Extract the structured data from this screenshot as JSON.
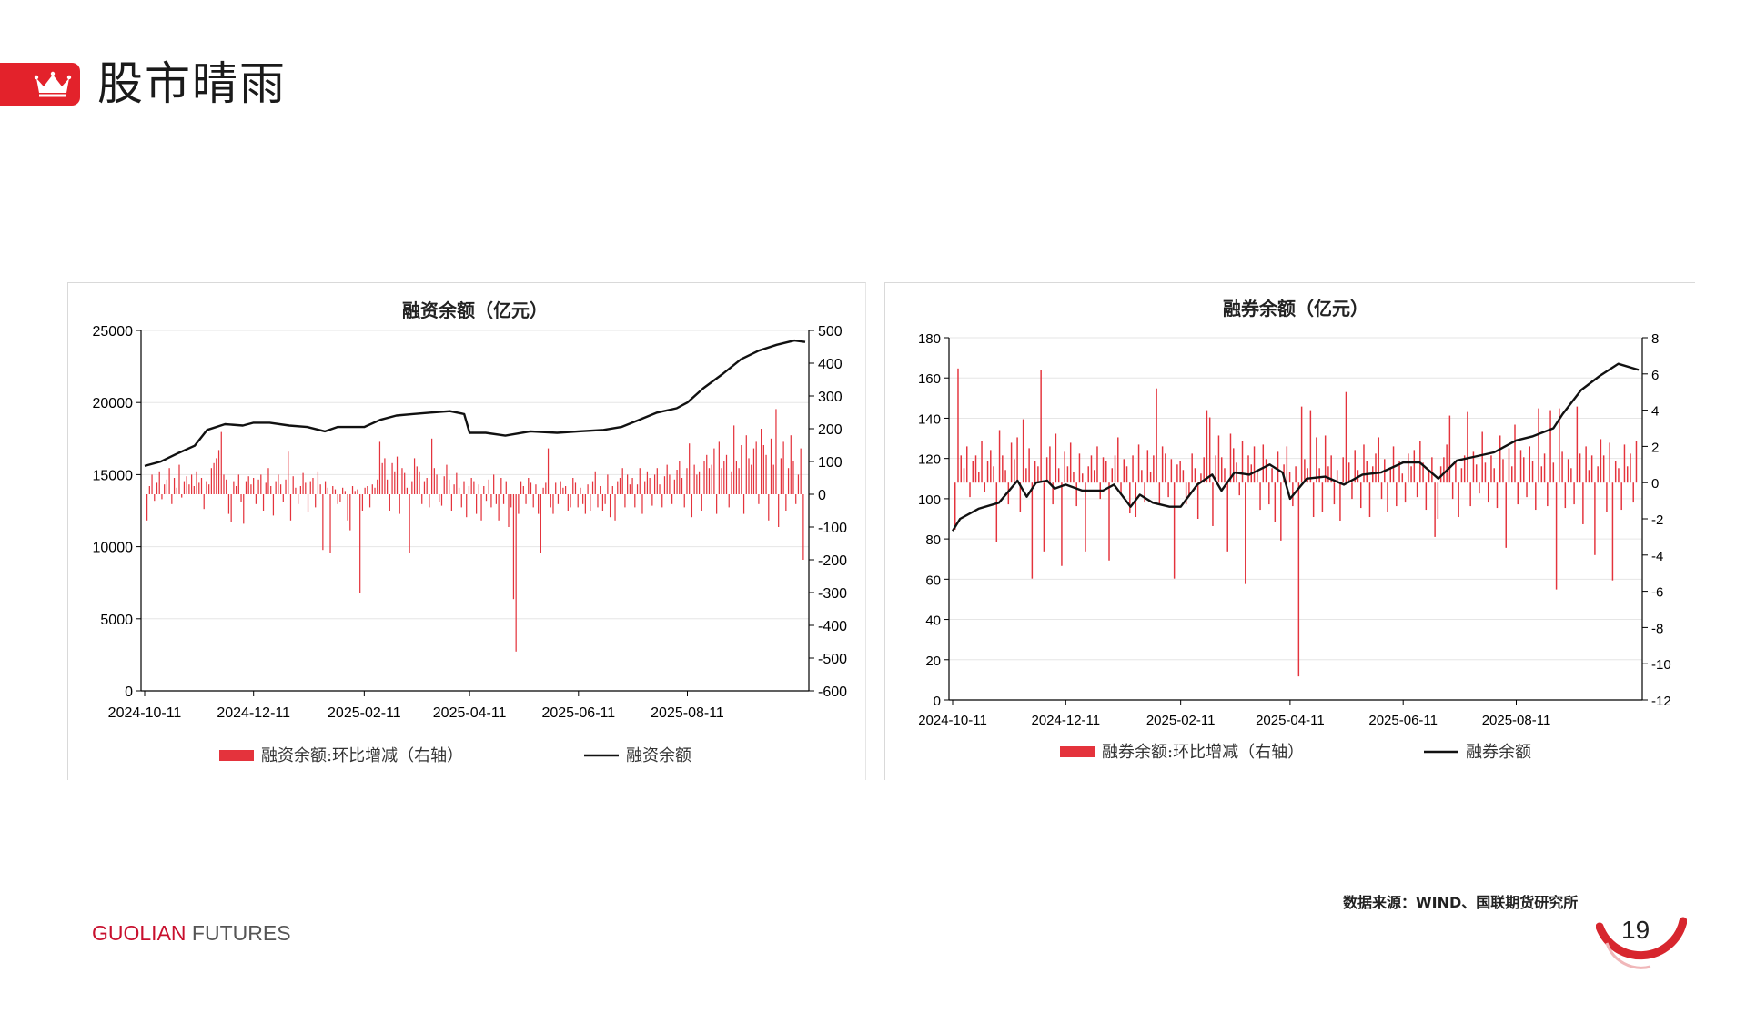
{
  "page": {
    "title": "股市晴雨",
    "source": "数据来源：WIND、国联期货研究所",
    "brand_main": "GUOLIAN",
    "brand_sub": " FUTURES",
    "page_number": "19"
  },
  "colors": {
    "accent": "#e3222b",
    "bar": "#e4333c",
    "line": "#111111",
    "grid": "#e6e6e6"
  },
  "icons": {
    "header": "crown-icon"
  },
  "chart_data": [
    {
      "type": "bar",
      "title": "融资余额（亿元）",
      "x_ticks": [
        "2024-10-11",
        "2024-12-11",
        "2025-02-11",
        "2025-04-11",
        "2025-06-11",
        "2025-08-11"
      ],
      "y_left": {
        "lim": [
          0,
          25000
        ],
        "ticks": [
          0,
          5000,
          10000,
          15000,
          20000,
          25000
        ]
      },
      "y_right": {
        "lim": [
          -600,
          500
        ],
        "ticks": [
          -600,
          -500,
          -400,
          -300,
          -200,
          -100,
          0,
          100,
          200,
          300,
          400,
          500
        ]
      },
      "grid": true,
      "legend_position": "bottom",
      "series": [
        {
          "name": "融资余额:环比增减（右轴）",
          "kind": "bar",
          "axis": "right",
          "values": [
            -80,
            25,
            60,
            -20,
            35,
            70,
            -15,
            30,
            45,
            80,
            -30,
            50,
            20,
            90,
            -10,
            40,
            55,
            30,
            60,
            25,
            70,
            35,
            50,
            -45,
            40,
            30,
            80,
            95,
            110,
            135,
            190,
            60,
            45,
            -60,
            -85,
            40,
            25,
            60,
            -25,
            -90,
            40,
            55,
            30,
            50,
            -30,
            45,
            60,
            -50,
            35,
            80,
            25,
            -65,
            40,
            60,
            30,
            -25,
            45,
            130,
            -80,
            55,
            20,
            -30,
            25,
            65,
            35,
            -55,
            40,
            50,
            -40,
            70,
            30,
            -170,
            40,
            20,
            -180,
            25,
            15,
            -30,
            -25,
            20,
            10,
            -80,
            -110,
            25,
            10,
            15,
            -300,
            -50,
            20,
            25,
            -40,
            30,
            20,
            45,
            160,
            95,
            110,
            45,
            -50,
            95,
            70,
            115,
            -60,
            80,
            65,
            20,
            -180,
            40,
            110,
            85,
            70,
            -30,
            40,
            50,
            -40,
            170,
            80,
            60,
            -25,
            -35,
            55,
            90,
            45,
            -50,
            30,
            65,
            20,
            -40,
            40,
            -70,
            25,
            50,
            40,
            -60,
            30,
            -80,
            25,
            -20,
            45,
            -40,
            60,
            -30,
            -80,
            50,
            -30,
            40,
            -100,
            -40,
            -320,
            -480,
            -60,
            40,
            25,
            -30,
            50,
            35,
            -40,
            30,
            -60,
            -180,
            20,
            35,
            140,
            -40,
            -60,
            35,
            -30,
            40,
            20,
            25,
            -50,
            -40,
            50,
            35,
            -40,
            20,
            -30,
            -60,
            30,
            -50,
            40,
            70,
            -40,
            25,
            -50,
            -30,
            60,
            -70,
            25,
            -80,
            40,
            50,
            80,
            -40,
            60,
            30,
            50,
            -40,
            30,
            80,
            -60,
            40,
            70,
            50,
            -35,
            60,
            80,
            30,
            -40,
            55,
            90,
            60,
            -30,
            45,
            75,
            100,
            50,
            -40,
            80,
            155,
            -70,
            90,
            60,
            70,
            -50,
            100,
            120,
            80,
            90,
            140,
            -60,
            160,
            80,
            100,
            120,
            -40,
            70,
            210,
            100,
            80,
            150,
            -60,
            180,
            110,
            90,
            140,
            160,
            -30,
            200,
            150,
            120,
            -80,
            170,
            90,
            260,
            -100,
            110,
            160,
            -50,
            80,
            180,
            100,
            -30,
            60,
            140,
            -200
          ],
          "note_values": "daily change, read off right axis"
        },
        {
          "name": "融资余额",
          "kind": "line",
          "axis": "left",
          "x": [
            "2024-10-11",
            "2024-10-20",
            "2024-10-30",
            "2024-11-08",
            "2024-11-15",
            "2024-11-25",
            "2024-12-05",
            "2024-12-11",
            "2024-12-20",
            "2024-12-31",
            "2025-01-10",
            "2025-01-20",
            "2025-01-27",
            "2025-02-11",
            "2025-02-20",
            "2025-03-01",
            "2025-03-10",
            "2025-03-20",
            "2025-03-31",
            "2025-04-08",
            "2025-04-11",
            "2025-04-20",
            "2025-05-01",
            "2025-05-15",
            "2025-05-30",
            "2025-06-11",
            "2025-06-25",
            "2025-07-05",
            "2025-07-15",
            "2025-07-25",
            "2025-08-05",
            "2025-08-11",
            "2025-08-20",
            "2025-08-31",
            "2025-09-10",
            "2025-09-20",
            "2025-09-30",
            "2025-10-10",
            "2025-10-16"
          ],
          "values": [
            15600,
            15900,
            16500,
            17000,
            18100,
            18500,
            18400,
            18600,
            18600,
            18400,
            18300,
            18000,
            18300,
            18300,
            18800,
            19100,
            19200,
            19300,
            19400,
            19200,
            17900,
            17900,
            17700,
            18000,
            17900,
            18000,
            18100,
            18300,
            18800,
            19300,
            19600,
            20000,
            21000,
            22000,
            23000,
            23600,
            24000,
            24300,
            24200
          ]
        }
      ]
    },
    {
      "type": "bar",
      "title": "融券余额（亿元）",
      "x_ticks": [
        "2024-10-11",
        "2024-12-11",
        "2025-02-11",
        "2025-04-11",
        "2025-06-11",
        "2025-08-11"
      ],
      "y_left": {
        "lim": [
          0,
          180
        ],
        "ticks": [
          0,
          20,
          40,
          60,
          80,
          100,
          120,
          140,
          160,
          180
        ]
      },
      "y_right": {
        "lim": [
          -12,
          8
        ],
        "ticks": [
          -12,
          -10,
          -8,
          -6,
          -4,
          -2,
          0,
          2,
          4,
          6,
          8
        ]
      },
      "grid": true,
      "legend_position": "bottom",
      "series": [
        {
          "name": "融券余额:环比增减（右轴）",
          "kind": "bar",
          "axis": "right",
          "values": [
            -2.6,
            6.3,
            1.5,
            0.8,
            2,
            -0.8,
            1.2,
            1.5,
            0.6,
            2.3,
            -0.5,
            1.2,
            1.8,
            0.9,
            -3.3,
            2.9,
            1.5,
            0.7,
            -1.2,
            2.2,
            1.3,
            2.5,
            -1.6,
            3.5,
            0.8,
            1.9,
            -5.3,
            1.2,
            0.9,
            6.2,
            -3.8,
            1.4,
            2,
            -1.2,
            2.7,
            0.8,
            -4.6,
            1.7,
            0.9,
            2.2,
            0.6,
            -1.3,
            1.6,
            0.5,
            -3.8,
            0.9,
            1.5,
            0.7,
            2,
            -0.9,
            1.4,
            1.2,
            -4.3,
            0.8,
            1.5,
            2.5,
            -0.6,
            1.3,
            0.9,
            -1.7,
            1.5,
            -1.9,
            2.1,
            0.7,
            -1.1,
            1.8,
            0.6,
            1.5,
            5.2,
            -1.2,
            2,
            1.6,
            -0.8,
            1.3,
            -5.3,
            1,
            1.2,
            0.7,
            -1.2,
            -0.8,
            1.6,
            0.8,
            -2,
            0.5,
            1.4,
            4,
            3.6,
            -2.4,
            1.5,
            2.6,
            1.4,
            0.8,
            -3.8,
            2.7,
            1.9,
            1.1,
            -0.7,
            2.3,
            -5.6,
            1.5,
            1,
            2,
            0.7,
            -1.5,
            2.1,
            1.3,
            -1.2,
            0.8,
            -2.2,
            1.7,
            -3.2,
            1,
            2,
            0.6,
            -1.3,
            0.9,
            -10.7,
            4.2,
            1.3,
            0.8,
            4,
            -1.9,
            2.5,
            0.8,
            -1.6,
            2.6,
            0.9,
            1.5,
            -1.2,
            0.7,
            -2.1,
            1.4,
            5,
            1.1,
            -0.9,
            1.8,
            0.7,
            -1.4,
            2.1,
            1.2,
            -1.9,
            0.9,
            1.6,
            2.5,
            -0.9,
            1.3,
            -1.6,
            0.8,
            2,
            -1.3,
            1.2,
            0.5,
            -1.1,
            1.6,
            0.9,
            1.8,
            -0.8,
            2.3,
            1.1,
            -1.5,
            0.7,
            1.4,
            -3,
            -2,
            0.9,
            1.4,
            2.1,
            3.7,
            -0.9,
            1.2,
            -1.9,
            0.8,
            1.5,
            3.9,
            -1.3,
            1.7,
            1,
            -0.6,
            2.8,
            1.1,
            -1.1,
            1.5,
            0.8,
            -1.4,
            2.6,
            1.3,
            -3.6,
            1.9,
            0.9,
            3.2,
            -1.2,
            1.8,
            1.4,
            -0.8,
            2,
            1.2,
            -1.5,
            4.1,
            0.9,
            1.6,
            -1.3,
            4,
            1.1,
            -5.9,
            4.1,
            1.7,
            -1.4,
            1.3,
            0.8,
            -1.2,
            4.2,
            1.6,
            -2.3,
            2,
            0.7,
            1.5,
            -4,
            0.9,
            2.4,
            1.5,
            -1.6,
            2.2,
            -5.4,
            1.2,
            0.8,
            -1.5,
            2.1,
            0.9,
            1.6,
            -1.1,
            2.3
          ],
          "note_values": "daily change, read off right axis"
        },
        {
          "name": "融券余额",
          "kind": "line",
          "axis": "left",
          "x": [
            "2024-10-11",
            "2024-10-15",
            "2024-10-25",
            "2024-11-05",
            "2024-11-15",
            "2024-11-20",
            "2024-11-25",
            "2024-12-01",
            "2024-12-05",
            "2024-12-11",
            "2024-12-20",
            "2024-12-31",
            "2025-01-06",
            "2025-01-15",
            "2025-01-20",
            "2025-01-27",
            "2025-02-05",
            "2025-02-11",
            "2025-02-20",
            "2025-02-28",
            "2025-03-05",
            "2025-03-12",
            "2025-03-20",
            "2025-03-31",
            "2025-04-07",
            "2025-04-11",
            "2025-04-20",
            "2025-04-30",
            "2025-05-10",
            "2025-05-20",
            "2025-05-30",
            "2025-06-11",
            "2025-06-20",
            "2025-06-30",
            "2025-07-10",
            "2025-07-20",
            "2025-07-30",
            "2025-08-11",
            "2025-08-20",
            "2025-08-31",
            "2025-09-05",
            "2025-09-15",
            "2025-09-25",
            "2025-10-05",
            "2025-10-16"
          ],
          "values": [
            84,
            90,
            95,
            98,
            109,
            101,
            108,
            109,
            105,
            107,
            104,
            104,
            107,
            96,
            102,
            98,
            96,
            96,
            107,
            112,
            104,
            113,
            112,
            117,
            113,
            100,
            110,
            111,
            107,
            112,
            113,
            118,
            118,
            110,
            119,
            121,
            123,
            129,
            131,
            135,
            142,
            154,
            161,
            167,
            164
          ]
        }
      ]
    }
  ]
}
